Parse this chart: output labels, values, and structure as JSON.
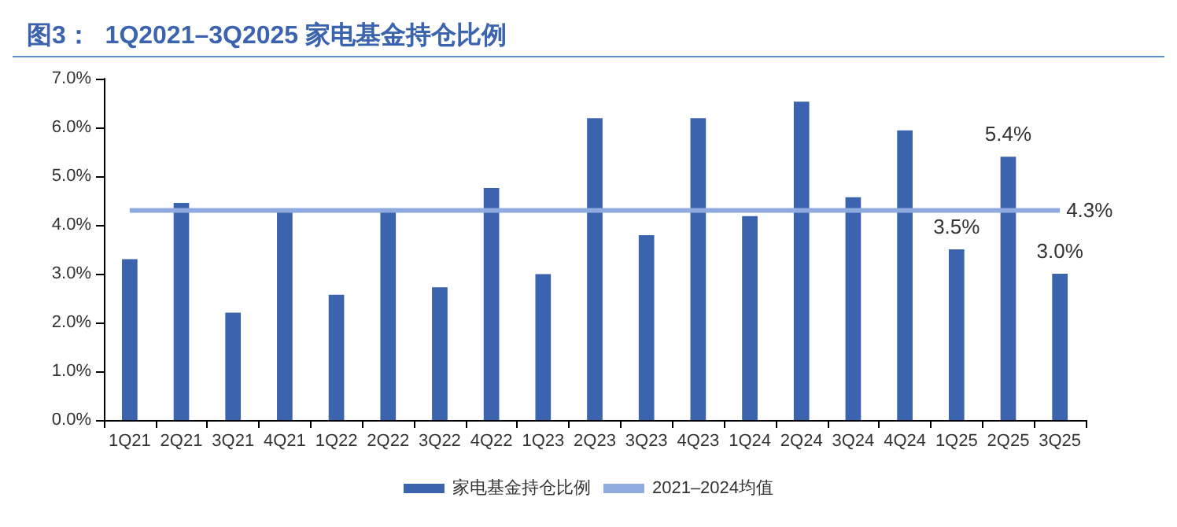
{
  "chart_data": {
    "type": "bar",
    "title": "图3：  1Q2021–3Q2025 家电基金持仓比例",
    "categories": [
      "1Q21",
      "2Q21",
      "3Q21",
      "4Q21",
      "1Q22",
      "2Q22",
      "3Q22",
      "4Q22",
      "1Q23",
      "2Q23",
      "3Q23",
      "4Q23",
      "1Q24",
      "2Q24",
      "3Q24",
      "4Q24",
      "1Q25",
      "2Q25",
      "3Q25"
    ],
    "series": [
      {
        "name": "家电基金持仓比例",
        "color": "#3c64ae",
        "values": [
          3.3,
          4.45,
          2.2,
          4.31,
          2.57,
          4.3,
          2.72,
          4.76,
          2.99,
          6.19,
          3.79,
          6.19,
          4.18,
          6.53,
          4.57,
          5.94,
          3.5,
          5.4,
          3.0
        ],
        "value_labels": [
          null,
          null,
          null,
          null,
          null,
          null,
          null,
          null,
          null,
          null,
          null,
          null,
          null,
          null,
          null,
          null,
          "3.5%",
          "5.4%",
          "3.0%"
        ]
      },
      {
        "name": "2021–2024均值",
        "type": "line",
        "color": "#8eaadf",
        "values": [
          4.3,
          4.3,
          4.3,
          4.3,
          4.3,
          4.3,
          4.3,
          4.3,
          4.3,
          4.3,
          4.3,
          4.3,
          4.3,
          4.3,
          4.3,
          4.3,
          4.3,
          4.3,
          4.3
        ],
        "value_labels": [
          null,
          null,
          null,
          null,
          null,
          null,
          null,
          null,
          null,
          null,
          null,
          null,
          null,
          null,
          null,
          null,
          null,
          null,
          "4.3%"
        ]
      }
    ],
    "ylim": [
      0,
      7
    ],
    "yticks": [
      {
        "value": 0,
        "label": "0.0%"
      },
      {
        "value": 1,
        "label": "1.0%"
      },
      {
        "value": 2,
        "label": "2.0%"
      },
      {
        "value": 3,
        "label": "3.0%"
      },
      {
        "value": 4,
        "label": "4.0%"
      },
      {
        "value": 5,
        "label": "5.0%"
      },
      {
        "value": 6,
        "label": "6.0%"
      },
      {
        "value": 7,
        "label": "7.0%"
      }
    ],
    "grid": false,
    "legend": "bottom",
    "marker": "none",
    "line_style": "solid"
  }
}
